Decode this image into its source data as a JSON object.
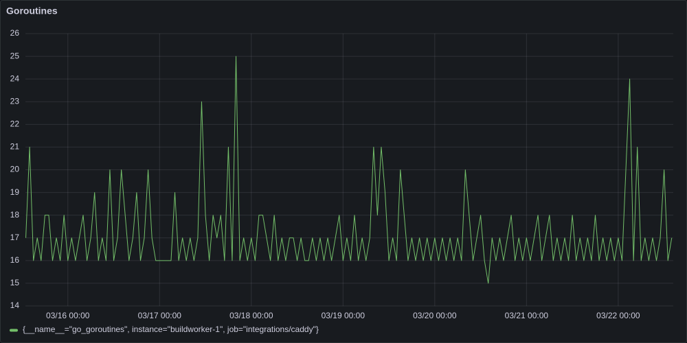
{
  "chart_data": {
    "type": "line",
    "title": "Goroutines",
    "x": [
      13,
      14,
      15,
      16,
      17,
      18,
      19,
      20,
      21,
      22,
      23,
      24,
      25,
      26,
      27,
      28,
      29,
      30,
      31,
      32,
      33,
      34,
      35,
      36,
      37,
      38,
      39,
      40,
      41,
      42,
      43,
      44,
      45,
      46,
      47,
      48,
      49,
      50,
      51,
      52,
      53,
      54,
      55,
      56,
      57,
      58,
      59,
      60,
      61,
      62,
      63,
      64,
      65,
      66,
      67,
      68,
      69,
      70,
      71,
      72,
      73,
      74,
      75,
      76,
      77,
      78,
      79,
      80,
      81,
      82,
      83,
      84,
      85,
      86,
      87,
      88,
      89,
      90,
      91,
      92,
      93,
      94,
      95,
      96,
      97,
      98,
      99,
      100,
      101,
      102,
      103,
      104,
      105,
      106,
      107,
      108,
      109,
      110,
      111,
      112,
      113,
      114,
      115,
      116,
      117,
      118,
      119,
      120,
      121,
      122,
      123,
      124,
      125,
      126,
      127,
      128,
      129,
      130,
      131,
      132,
      133,
      134,
      135,
      136,
      137,
      138,
      139,
      140,
      141,
      142,
      143,
      144,
      145,
      146,
      147,
      148,
      149,
      150,
      151,
      152,
      153,
      154,
      155,
      156,
      157,
      158,
      159,
      160,
      161,
      162,
      163,
      164,
      165,
      166,
      167,
      168,
      169,
      170,
      171,
      172,
      173,
      174,
      175,
      176,
      177,
      178,
      179,
      180,
      181,
      182
    ],
    "series": [
      {
        "name": "{__name__=\"go_goroutines\", instance=\"buildworker-1\", job=\"integrations/caddy\"}",
        "color": "#73bf69",
        "values": [
          17,
          21,
          16,
          17,
          16,
          18,
          18,
          16,
          17,
          16,
          18,
          16,
          17,
          16,
          17,
          18,
          16,
          17,
          19,
          16,
          17,
          16,
          20,
          16,
          17,
          20,
          18,
          16,
          17,
          19,
          16,
          17,
          20,
          17,
          16,
          16,
          16,
          16,
          16,
          19,
          16,
          17,
          16,
          17,
          16,
          17,
          23,
          18,
          16,
          18,
          17,
          18,
          16,
          21,
          16,
          25,
          16,
          17,
          16,
          17,
          16,
          18,
          18,
          17,
          16,
          18,
          16,
          17,
          16,
          17,
          17,
          16,
          17,
          16,
          16,
          17,
          16,
          17,
          16,
          17,
          16,
          17,
          18,
          16,
          17,
          16,
          18,
          16,
          17,
          16,
          17,
          21,
          18,
          21,
          19,
          16,
          17,
          16,
          20,
          18,
          16,
          17,
          16,
          17,
          16,
          17,
          16,
          17,
          16,
          17,
          16,
          17,
          16,
          17,
          16,
          20,
          18,
          16,
          17,
          18,
          16,
          15,
          17,
          16,
          17,
          16,
          17,
          18,
          16,
          17,
          16,
          17,
          16,
          17,
          18,
          16,
          17,
          18,
          16,
          17,
          16,
          17,
          16,
          18,
          16,
          17,
          16,
          17,
          16,
          18,
          16,
          17,
          16,
          17,
          16,
          17,
          16,
          20,
          24,
          16,
          21,
          16,
          17,
          16,
          17,
          16,
          17,
          20,
          16,
          17
        ]
      }
    ],
    "xlim": [
      12.9,
      182.4
    ],
    "xticks": [
      {
        "value": 24,
        "label": "03/16 00:00"
      },
      {
        "value": 48,
        "label": "03/17 00:00"
      },
      {
        "value": 72,
        "label": "03/18 00:00"
      },
      {
        "value": 96,
        "label": "03/19 00:00"
      },
      {
        "value": 120,
        "label": "03/20 00:00"
      },
      {
        "value": 144,
        "label": "03/21 00:00"
      },
      {
        "value": 168,
        "label": "03/22 00:00"
      }
    ],
    "ylim": [
      14,
      26
    ],
    "yticks": [
      14,
      15,
      16,
      17,
      18,
      19,
      20,
      21,
      22,
      23,
      24,
      25,
      26
    ],
    "grid": true
  }
}
